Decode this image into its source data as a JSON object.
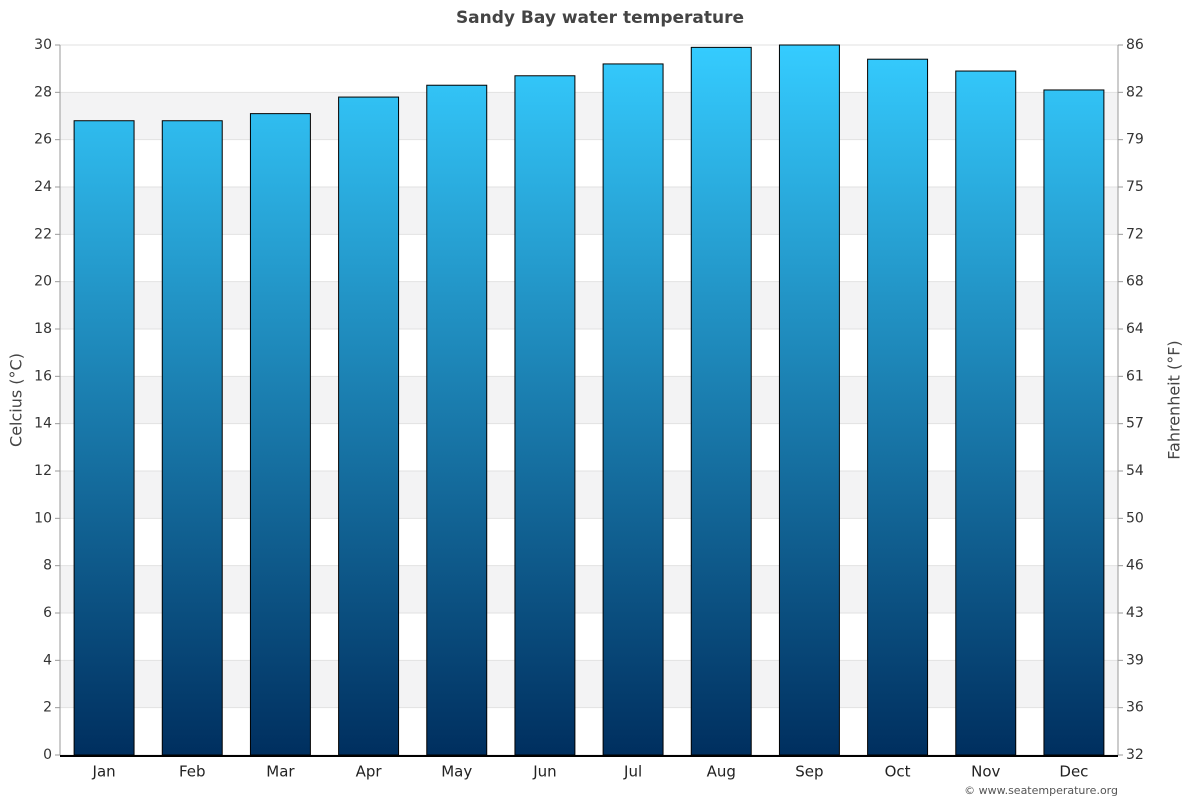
{
  "chart_data": {
    "type": "bar",
    "title": "Sandy Bay water temperature",
    "y_label": "Celcius (°C)",
    "y2_label": "Fahrenheit (°F)",
    "footer": "© www.seatemperature.org",
    "categories": [
      "Jan",
      "Feb",
      "Mar",
      "Apr",
      "May",
      "Jun",
      "Jul",
      "Aug",
      "Sep",
      "Oct",
      "Nov",
      "Dec"
    ],
    "values": [
      26.8,
      26.8,
      27.1,
      27.8,
      28.3,
      28.7,
      29.2,
      29.9,
      30.0,
      29.4,
      28.9,
      28.1
    ],
    "gradient": [
      "#35ccff",
      "#002f5f"
    ],
    "ylim": [
      0,
      30
    ],
    "yticks": [
      0,
      2,
      4,
      6,
      8,
      10,
      12,
      14,
      16,
      18,
      20,
      22,
      24,
      26,
      28,
      30
    ],
    "y2lim": [
      32,
      86
    ],
    "y2ticks": [
      32,
      {
        "value": 35.6,
        "label": "36"
      },
      {
        "value": 39.2,
        "label": "39"
      },
      {
        "value": 42.8,
        "label": "43"
      },
      {
        "value": 46.4,
        "label": "46"
      },
      50,
      {
        "value": 53.6,
        "label": "54"
      },
      {
        "value": 57.2,
        "label": "57"
      },
      {
        "value": 60.8,
        "label": "61"
      },
      {
        "value": 64.4,
        "label": "64"
      },
      68,
      {
        "value": 71.6,
        "label": "72"
      },
      {
        "value": 75.2,
        "label": "75"
      },
      {
        "value": 78.8,
        "label": "79"
      },
      {
        "value": 82.4,
        "label": "82"
      },
      86
    ],
    "grid": true
  }
}
